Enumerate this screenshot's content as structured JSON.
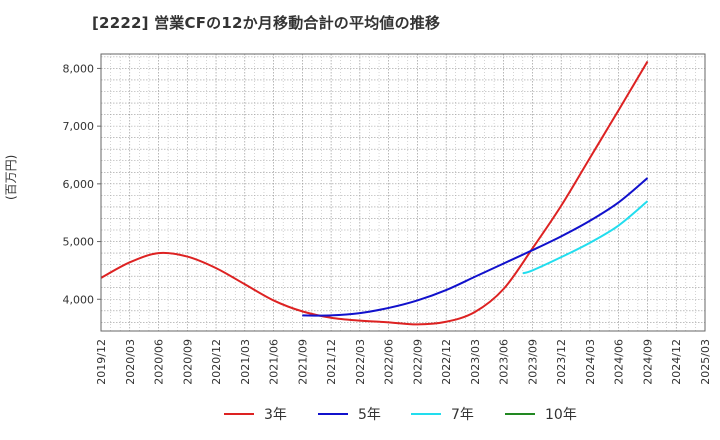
{
  "chart_data": {
    "type": "line",
    "title": "[2222]  営業CFの12か月移動合計の平均値の推移",
    "ylabel": "(百万円)",
    "xlabel": "",
    "x_ticks": [
      "2019/12",
      "2020/03",
      "2020/06",
      "2020/09",
      "2020/12",
      "2021/03",
      "2021/06",
      "2021/09",
      "2021/12",
      "2022/03",
      "2022/06",
      "2022/09",
      "2022/12",
      "2023/03",
      "2023/06",
      "2023/09",
      "2023/12",
      "2024/03",
      "2024/06",
      "2024/09",
      "2024/12",
      "2025/03"
    ],
    "y_ticks": [
      4000,
      5000,
      6000,
      7000,
      8000
    ],
    "ylim": [
      3450,
      8250
    ],
    "grid": true,
    "legend_position": "bottom",
    "series": [
      {
        "name": "3年",
        "color": "#dd2222",
        "x": [
          "2019/12",
          "2020/03",
          "2020/06",
          "2020/09",
          "2020/12",
          "2021/03",
          "2021/06",
          "2021/09",
          "2021/12",
          "2022/03",
          "2022/06",
          "2022/09",
          "2022/12",
          "2023/03",
          "2023/06",
          "2023/09",
          "2023/12",
          "2024/03",
          "2024/06",
          "2024/09"
        ],
        "values": [
          4370,
          4640,
          4800,
          4740,
          4540,
          4260,
          3980,
          3790,
          3680,
          3630,
          3600,
          3565,
          3610,
          3780,
          4180,
          4880,
          5620,
          6450,
          7280,
          8120
        ]
      },
      {
        "name": "5年",
        "color": "#1111cc",
        "x": [
          "2021/09",
          "2021/12",
          "2022/03",
          "2022/06",
          "2022/09",
          "2022/12",
          "2023/03",
          "2023/06",
          "2023/09",
          "2023/12",
          "2024/03",
          "2024/06",
          "2024/09"
        ],
        "values": [
          3720,
          3720,
          3760,
          3850,
          3980,
          4160,
          4390,
          4620,
          4850,
          5090,
          5360,
          5680,
          6100
        ]
      },
      {
        "name": "7年",
        "color": "#22ddee",
        "x": [
          "2023/08",
          "2023/09",
          "2023/12",
          "2024/03",
          "2024/06",
          "2024/09"
        ],
        "values": [
          4450,
          4500,
          4730,
          4980,
          5280,
          5700
        ]
      },
      {
        "name": "10年",
        "color": "#228822",
        "x": [],
        "values": []
      }
    ]
  }
}
